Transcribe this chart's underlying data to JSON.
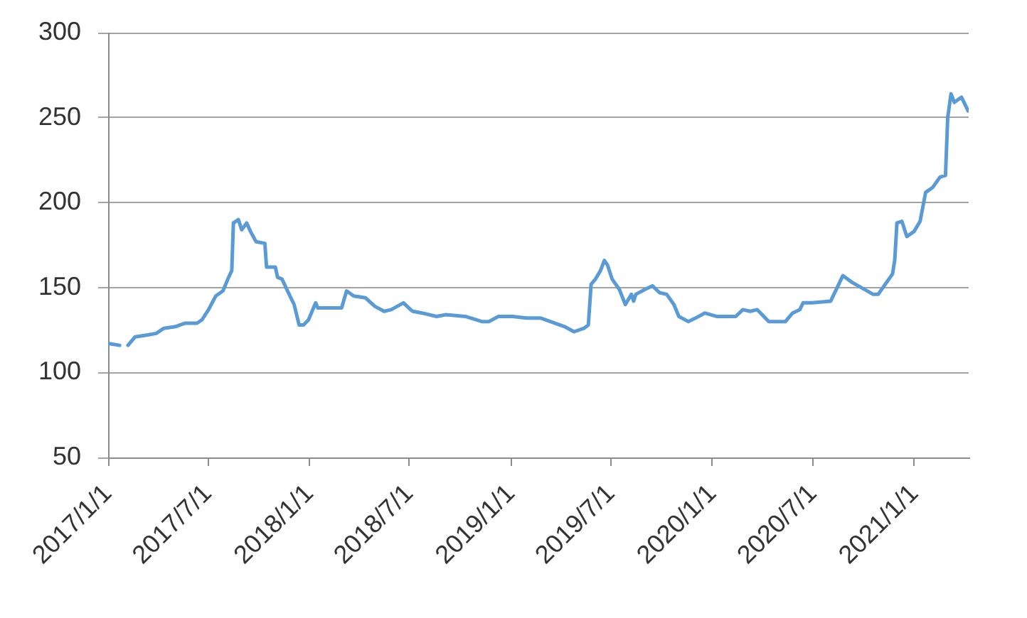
{
  "chart_data": {
    "type": "line",
    "color": "#5b9bd5",
    "marker": "none",
    "line_style": "solid",
    "grid": "y",
    "x": [
      "2017-01-03",
      "2017-01-22",
      "2017-02-01",
      "2017-02-06",
      "2017-02-19",
      "2017-03-12",
      "2017-03-29",
      "2017-04-12",
      "2017-05-03",
      "2017-05-20",
      "2017-06-11",
      "2017-06-20",
      "2017-07-02",
      "2017-07-15",
      "2017-07-28",
      "2017-08-06",
      "2017-08-13",
      "2017-08-16",
      "2017-08-25",
      "2017-08-31",
      "2017-09-09",
      "2017-09-16",
      "2017-09-26",
      "2017-10-12",
      "2017-10-15",
      "2017-10-31",
      "2017-11-04",
      "2017-11-12",
      "2017-11-25",
      "2017-12-04",
      "2017-12-13",
      "2017-12-21",
      "2017-12-30",
      "2018-01-12",
      "2018-01-16",
      "2018-02-28",
      "2018-03-09",
      "2018-03-22",
      "2018-04-12",
      "2018-04-29",
      "2018-05-16",
      "2018-05-29",
      "2018-06-20",
      "2018-07-03",
      "2018-07-07",
      "2018-07-24",
      "2018-08-19",
      "2018-09-05",
      "2018-10-10",
      "2018-11-09",
      "2018-11-22",
      "2018-12-09",
      "2019-01-04",
      "2019-01-29",
      "2019-02-24",
      "2019-03-22",
      "2019-04-08",
      "2019-04-25",
      "2019-05-13",
      "2019-05-21",
      "2019-05-26",
      "2019-06-03",
      "2019-06-12",
      "2019-06-19",
      "2019-06-25",
      "2019-07-03",
      "2019-07-16",
      "2019-07-27",
      "2019-08-07",
      "2019-08-11",
      "2019-08-15",
      "2019-09-01",
      "2019-09-14",
      "2019-09-27",
      "2019-10-10",
      "2019-10-23",
      "2019-11-01",
      "2019-11-18",
      "2019-12-01",
      "2019-12-18",
      "2020-01-08",
      "2020-02-12",
      "2020-02-25",
      "2020-03-09",
      "2020-03-22",
      "2020-04-12",
      "2020-05-12",
      "2020-05-25",
      "2020-06-07",
      "2020-06-13",
      "2020-06-29",
      "2020-08-02",
      "2020-08-24",
      "2020-09-10",
      "2020-10-18",
      "2020-10-27",
      "2020-11-09",
      "2020-11-22",
      "2020-11-26",
      "2020-11-30",
      "2020-12-09",
      "2020-12-18",
      "2020-12-31",
      "2021-01-11",
      "2021-01-21",
      "2021-02-03",
      "2021-02-16",
      "2021-02-26",
      "2021-03-02",
      "2021-03-08",
      "2021-03-14",
      "2021-03-27",
      "2021-04-08"
    ],
    "values": [
      117,
      116,
      null,
      116,
      121,
      122,
      123,
      126,
      127,
      129,
      129,
      131,
      137,
      145,
      148,
      155,
      160,
      188,
      190,
      184,
      188,
      183,
      177,
      176,
      162,
      162,
      156,
      155,
      146,
      140,
      128,
      128,
      131,
      141,
      138,
      138,
      148,
      145,
      144,
      139,
      136,
      137,
      141,
      137,
      136,
      135,
      133,
      134,
      133,
      130,
      130,
      133,
      133,
      132,
      132,
      129,
      127,
      124,
      126,
      128,
      152,
      155,
      160,
      166,
      163,
      155,
      149,
      140,
      146,
      142,
      146,
      149,
      151,
      147,
      146,
      140,
      133,
      130,
      132,
      135,
      133,
      133,
      137,
      136,
      137,
      130,
      130,
      135,
      137,
      141,
      141,
      142,
      157,
      153,
      146,
      146,
      152,
      158,
      166,
      188,
      189,
      180,
      183,
      189,
      206,
      209,
      215,
      216,
      250,
      264,
      259,
      262,
      254
    ],
    "xlim": [
      "2017-01-01",
      "2021-04-09"
    ],
    "xticks": [
      {
        "value": "2017-01-01",
        "label": "2017/1/1"
      },
      {
        "value": "2017-07-01",
        "label": "2017/7/1"
      },
      {
        "value": "2018-01-01",
        "label": "2018/1/1"
      },
      {
        "value": "2018-07-01",
        "label": "2018/7/1"
      },
      {
        "value": "2019-01-01",
        "label": "2019/1/1"
      },
      {
        "value": "2019-07-01",
        "label": "2019/7/1"
      },
      {
        "value": "2020-01-01",
        "label": "2020/1/1"
      },
      {
        "value": "2020-07-01",
        "label": "2020/7/1"
      },
      {
        "value": "2021-01-01",
        "label": "2021/1/1"
      }
    ],
    "ylim": [
      50,
      300
    ],
    "yticks": [
      50,
      100,
      150,
      200,
      250,
      300
    ]
  }
}
